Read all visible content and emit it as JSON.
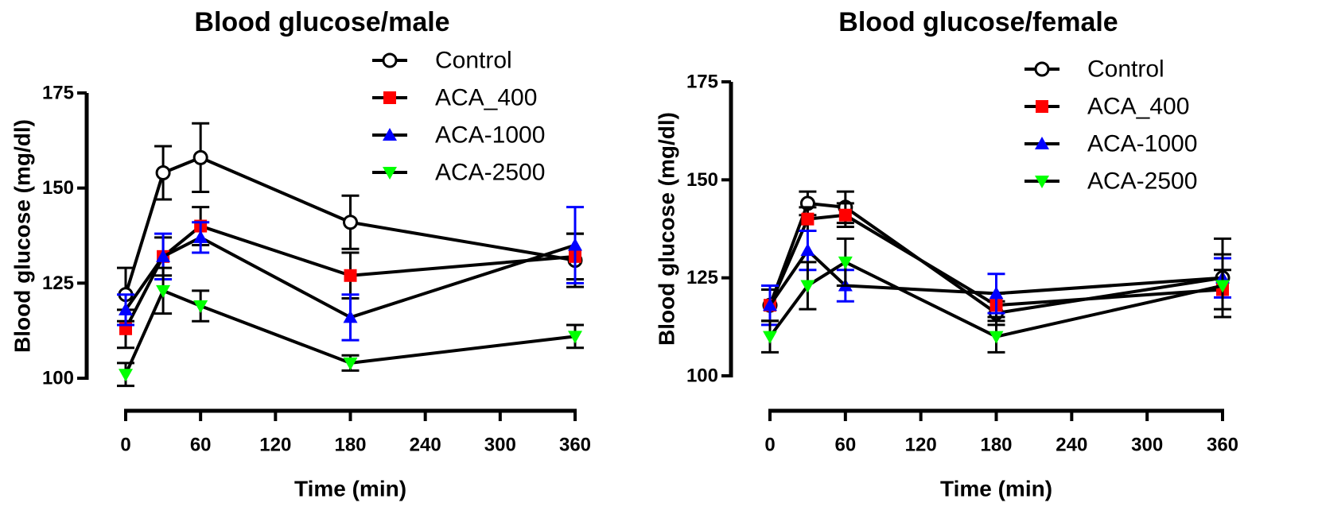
{
  "chart_data": [
    {
      "type": "line",
      "title": "Blood glucose/male",
      "xlabel": "Time (min)",
      "ylabel": "Blood glucose (mg/dl)",
      "x": [
        0,
        30,
        60,
        180,
        360
      ],
      "xticks": [
        0,
        60,
        120,
        180,
        240,
        300,
        360
      ],
      "xlim": [
        0,
        360
      ],
      "yticks": [
        100,
        125,
        150,
        175
      ],
      "ylim": [
        100,
        175
      ],
      "grid": false,
      "legend": "top-right",
      "series": [
        {
          "name": "Control",
          "marker": "circle-open",
          "color": "#000000",
          "values": [
            122,
            154,
            158,
            141,
            131
          ],
          "errors": [
            7,
            7,
            9,
            7,
            7
          ]
        },
        {
          "name": "ACA_400",
          "marker": "square",
          "color": "#ff0000",
          "values": [
            113,
            132,
            140,
            127,
            132
          ],
          "errors": [
            5,
            5,
            5,
            6,
            6
          ]
        },
        {
          "name": "ACA-1000",
          "marker": "triangle-up",
          "color": "#0000ff",
          "values": [
            118,
            132,
            137,
            116,
            135
          ],
          "errors": [
            4,
            6,
            4,
            6,
            10
          ]
        },
        {
          "name": "ACA-2500",
          "marker": "triangle-down",
          "color": "#00ff00",
          "values": [
            101,
            123,
            119,
            104,
            111
          ],
          "errors": [
            3,
            6,
            4,
            2,
            3
          ]
        }
      ]
    },
    {
      "type": "line",
      "title": "Blood glucose/female",
      "xlabel": "Time (min)",
      "ylabel": "Blood glucose (mg/dl)",
      "x": [
        0,
        30,
        60,
        180,
        360
      ],
      "xticks": [
        0,
        60,
        120,
        180,
        240,
        300,
        360
      ],
      "xlim": [
        0,
        360
      ],
      "yticks": [
        100,
        125,
        150,
        175
      ],
      "ylim": [
        100,
        175
      ],
      "grid": false,
      "legend": "top-right",
      "series": [
        {
          "name": "Control",
          "marker": "circle-open",
          "color": "#000000",
          "values": [
            118,
            144,
            143,
            116,
            125
          ],
          "errors": [
            4,
            3,
            4,
            3,
            10
          ]
        },
        {
          "name": "ACA_400",
          "marker": "square",
          "color": "#ff0000",
          "values": [
            118,
            140,
            141,
            118,
            122
          ],
          "errors": [
            4,
            3,
            3,
            3,
            5
          ]
        },
        {
          "name": "ACA-1000",
          "marker": "triangle-up",
          "color": "#0000ff",
          "values": [
            118,
            132,
            123,
            121,
            125
          ],
          "errors": [
            5,
            5,
            4,
            5,
            5
          ]
        },
        {
          "name": "ACA-2500",
          "marker": "triangle-down",
          "color": "#00ff00",
          "values": [
            110,
            123,
            129,
            110,
            123
          ],
          "errors": [
            4,
            6,
            6,
            4,
            8
          ]
        }
      ]
    }
  ]
}
